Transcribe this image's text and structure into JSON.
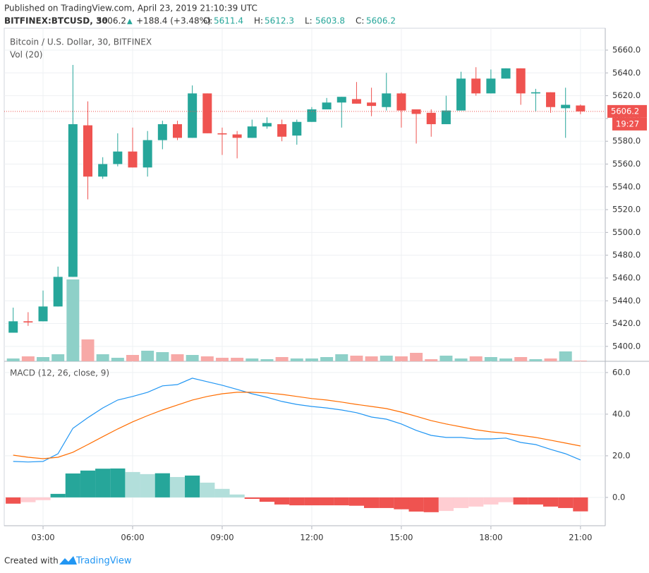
{
  "header": {
    "published": "Published on TradingView.com, April 23, 2019 21:10:39 UTC",
    "symbol": "BITFINEX:BTCUSD, 30",
    "price": "5606.2",
    "arrow": "▲",
    "change": "+188.4 (+3.48%)",
    "ohlc": [
      {
        "label": "O:",
        "value": "5611.4"
      },
      {
        "label": "H:",
        "value": "5612.3"
      },
      {
        "label": "L:",
        "value": "5603.8"
      },
      {
        "label": "C:",
        "value": "5606.2"
      }
    ]
  },
  "footer": {
    "created": "Created with",
    "brand": "TradingView"
  },
  "chart_data": [
    {
      "type": "candlestick",
      "title": "Bitcoin / U.S. Dollar, 30, BITFINEX",
      "x": [
        2,
        2.5,
        3,
        3.5,
        4,
        4.5,
        5,
        5.5,
        6,
        6.5,
        7,
        7.5,
        8,
        8.5,
        9,
        9.5,
        10,
        10.5,
        11,
        11.5,
        12,
        12.5,
        13,
        13.5,
        14,
        14.5,
        15,
        15.5,
        16,
        16.5,
        17,
        17.5,
        18,
        18.5,
        19,
        19.5,
        20,
        20.5,
        21
      ],
      "open": [
        5412,
        5422,
        5422,
        5435,
        5461,
        5594,
        5549,
        5560,
        5571,
        5557,
        5581,
        5595,
        5583,
        5622,
        5587,
        5586,
        5583,
        5593,
        5595,
        5585,
        5597,
        5608,
        5614,
        5617,
        5614,
        5610,
        5622,
        5608,
        5605,
        5595,
        5607,
        5635,
        5622,
        5635,
        5644,
        5622,
        5623,
        5609,
        5611.4
      ],
      "high": [
        5434,
        5430,
        5449,
        5470,
        5647,
        5615,
        5566,
        5587,
        5592,
        5589,
        5598,
        5598,
        5629,
        5622,
        5592,
        5589,
        5599,
        5601,
        5599,
        5599,
        5610,
        5618,
        5619,
        5632,
        5627,
        5640,
        5623,
        5608,
        5608,
        5620,
        5641,
        5645,
        5643,
        5644,
        5644,
        5626,
        5623,
        5627,
        5612.3
      ],
      "low": [
        5412,
        5418,
        5422,
        5435,
        5461,
        5529,
        5547,
        5558,
        5557,
        5549,
        5573,
        5581,
        5583,
        5587,
        5568,
        5565,
        5583,
        5591,
        5580,
        5577,
        5597,
        5608,
        5592,
        5613,
        5602,
        5607,
        5592,
        5578,
        5584,
        5595,
        5607,
        5620,
        5622,
        5635,
        5612,
        5606,
        5605,
        5583,
        5603.8
      ],
      "close": [
        5422,
        5421,
        5435,
        5461,
        5595,
        5549,
        5560,
        5571,
        5557,
        5581,
        5595,
        5583,
        5622,
        5587,
        5586,
        5583,
        5593,
        5596,
        5584,
        5597,
        5608,
        5614,
        5619,
        5613,
        5611,
        5622,
        5607,
        5604,
        5595,
        5607,
        5635,
        5622,
        5635,
        5644,
        5622,
        5623,
        5610,
        5612,
        5606.2
      ],
      "up_color": "#26a69a",
      "down_color": "#ef5350",
      "xlim": [
        1.7,
        21.83
      ],
      "xticks": [
        {
          "value": 3,
          "label": "03:00"
        },
        {
          "value": 6,
          "label": "06:00"
        },
        {
          "value": 9,
          "label": "09:00"
        },
        {
          "value": 12,
          "label": "12:00"
        },
        {
          "value": 15,
          "label": "15:00"
        },
        {
          "value": 18,
          "label": "18:00"
        },
        {
          "value": 21,
          "label": "21:00"
        }
      ],
      "ylim": [
        5386.9,
        5679.2
      ],
      "yticks": [
        {
          "value": 5400,
          "label": "5400.0"
        },
        {
          "value": 5420,
          "label": "5420.0"
        },
        {
          "value": 5440,
          "label": "5440.0"
        },
        {
          "value": 5460,
          "label": "5460.0"
        },
        {
          "value": 5480,
          "label": "5480.0"
        },
        {
          "value": 5500,
          "label": "5500.0"
        },
        {
          "value": 5520,
          "label": "5520.0"
        },
        {
          "value": 5540,
          "label": "5540.0"
        },
        {
          "value": 5560,
          "label": "5560.0"
        },
        {
          "value": 5580,
          "label": "5580.0"
        },
        {
          "value": 5600,
          "label": "5600.0"
        },
        {
          "value": 5620,
          "label": "5620.0"
        },
        {
          "value": 5640,
          "label": "5640.0"
        },
        {
          "value": 5660,
          "label": "5660.0"
        }
      ],
      "grid": true,
      "last_price": 5606.2,
      "countdown": "19:27",
      "volume": {
        "name": "Vol (20)",
        "values": [
          4,
          7,
          6,
          10,
          116,
          31,
          10,
          5,
          9,
          15,
          13,
          10,
          9,
          7,
          5,
          5,
          4,
          3,
          6,
          4,
          4,
          6,
          10,
          8,
          7,
          8,
          7,
          12,
          3,
          8,
          4,
          7,
          6,
          4,
          6,
          3,
          4,
          14,
          1
        ],
        "up_color": "#8ed0c8",
        "down_color": "#f7a9a7"
      }
    },
    {
      "type": "macd",
      "title": "MACD (12, 26, close, 9)",
      "series": [
        {
          "color": "#2196f3",
          "values": [
            17.3,
            17,
            17.3,
            21,
            33.2,
            38.3,
            43,
            46.8,
            48.5,
            50.5,
            53.6,
            54.2,
            57.3,
            55.6,
            53.9,
            51.9,
            49.8,
            48.1,
            46.1,
            44.7,
            43.7,
            43,
            42,
            40.7,
            38.6,
            37.6,
            35.3,
            32.2,
            29.8,
            28.8,
            28.8,
            28.1,
            28.1,
            28.5,
            26.4,
            25.4,
            23.1,
            21,
            18
          ]
        },
        {
          "color": "#ff6d00",
          "values": [
            20.3,
            19.3,
            18.6,
            19.3,
            21.7,
            25.4,
            29.2,
            32.9,
            36.3,
            39.3,
            42,
            44.4,
            46.8,
            48.5,
            49.8,
            50.5,
            50.5,
            50.2,
            49.5,
            48.5,
            47.5,
            46.8,
            45.8,
            44.7,
            43.7,
            42.7,
            41,
            39,
            36.9,
            35.3,
            33.9,
            32.5,
            31.5,
            30.8,
            29.8,
            28.8,
            27.5,
            26.1,
            24.7
          ]
        }
      ],
      "histogram": [
        -3,
        -2.3,
        -1.3,
        1.7,
        11.5,
        12.9,
        13.8,
        13.9,
        12.2,
        11.2,
        11.6,
        9.8,
        10.5,
        7.1,
        4.1,
        1.4,
        -0.7,
        -2.1,
        -3.4,
        -3.8,
        -3.8,
        -3.8,
        -3.8,
        -4,
        -5.1,
        -5.1,
        -5.7,
        -6.8,
        -7.1,
        -6.5,
        -5.1,
        -4.4,
        -3.4,
        -2.3,
        -3.4,
        -3.4,
        -4.4,
        -5.1,
        -6.7
      ],
      "hist_colors": [
        "#26a69a",
        "#b2dfdb",
        "#ef5350",
        "#ffcdd2"
      ],
      "ylim": [
        -13.6,
        65.4
      ],
      "yticks": [
        {
          "value": 0,
          "label": "0.0"
        },
        {
          "value": 20,
          "label": "20.0"
        },
        {
          "value": 40,
          "label": "40.0"
        },
        {
          "value": 60,
          "label": "60.0"
        }
      ]
    }
  ]
}
